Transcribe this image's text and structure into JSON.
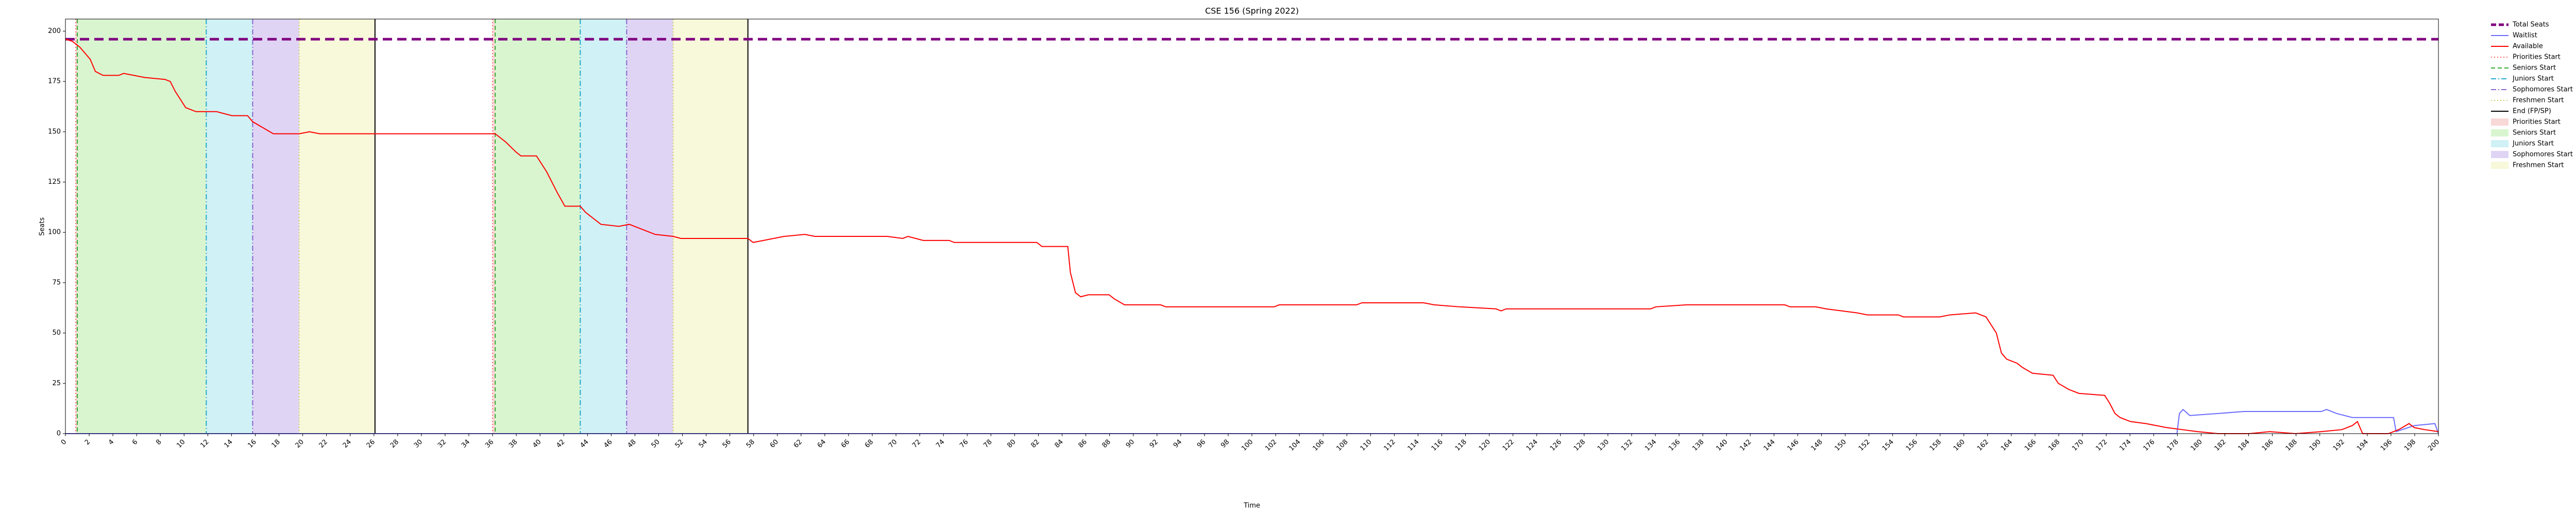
{
  "chart_data": {
    "type": "line",
    "title": "CSE 156 (Spring 2022)",
    "x_label": "Time",
    "y_label": "Seats",
    "xlim": [
      0,
      200
    ],
    "ylim": [
      0,
      206
    ],
    "xticks": [
      0,
      2,
      4,
      6,
      8,
      10,
      12,
      14,
      16,
      18,
      20,
      22,
      24,
      26,
      28,
      30,
      32,
      34,
      36,
      38,
      40,
      42,
      44,
      46,
      48,
      50,
      52,
      54,
      56,
      58,
      60,
      62,
      64,
      66,
      68,
      70,
      72,
      74,
      76,
      78,
      80,
      82,
      84,
      86,
      88,
      90,
      92,
      94,
      96,
      98,
      100,
      102,
      104,
      106,
      108,
      110,
      112,
      114,
      116,
      118,
      120,
      122,
      124,
      126,
      128,
      130,
      132,
      134,
      136,
      138,
      140,
      142,
      144,
      146,
      148,
      150,
      152,
      154,
      156,
      158,
      160,
      162,
      164,
      166,
      168,
      170,
      172,
      174,
      176,
      178,
      180,
      182,
      184,
      186,
      188,
      190,
      192,
      194,
      196,
      198,
      200
    ],
    "yticks": [
      0,
      25,
      50,
      75,
      100,
      125,
      150,
      175,
      200
    ],
    "grid": true,
    "total_seats": {
      "name": "Total Seats",
      "color": "#800080",
      "value": 196
    },
    "series": [
      {
        "name": "Waitlist",
        "color": "#6b6bff",
        "x": [
          0,
          177.96,
          178.17,
          178.48,
          179.04,
          181.43,
          183.61,
          190.13,
          190.57,
          191.43,
          192.74,
          196.22,
          196.43,
          197.96,
          199.7,
          200
        ],
        "values": [
          0,
          0,
          10,
          12,
          9,
          10,
          11,
          11,
          12,
          10,
          8,
          8,
          1,
          4,
          5,
          0
        ]
      },
      {
        "name": "Available",
        "color": "#ff0000",
        "x": [
          0,
          0.57,
          1.22,
          2.09,
          2.52,
          3.17,
          4.48,
          4.91,
          5.78,
          6.65,
          8.39,
          8.83,
          9.26,
          9.7,
          10.13,
          11,
          12.74,
          14.04,
          15.35,
          15.78,
          16.65,
          17.52,
          19.7,
          20.57,
          21.43,
          36.22,
          37.09,
          37.96,
          38.39,
          39.7,
          40.57,
          41.43,
          42.09,
          43.39,
          43.83,
          44.48,
          45.13,
          46.65,
          47.52,
          48.83,
          49.7,
          51.22,
          51.87,
          57.52,
          57.96,
          58.83,
          60.57,
          62.3,
          63.17,
          69.26,
          70.57,
          71,
          72.3,
          74.48,
          74.91,
          81.87,
          82.3,
          84.48,
          84.7,
          85.13,
          85.57,
          86.22,
          87.96,
          88.39,
          89.26,
          92.3,
          92.74,
          101.87,
          102.3,
          108.83,
          109.26,
          114.48,
          115.35,
          117.52,
          120.57,
          121,
          121.43,
          133.61,
          134.04,
          136.65,
          144.91,
          145.35,
          147.52,
          148.39,
          149.7,
          151,
          151.87,
          154.48,
          154.91,
          157.96,
          158.83,
          161,
          161.43,
          161.87,
          162.74,
          163.17,
          163.61,
          164.48,
          164.91,
          165.78,
          167.52,
          167.96,
          168.83,
          169.26,
          169.7,
          171.87,
          172.3,
          172.74,
          173.17,
          174.04,
          175.35,
          176.22,
          177.09,
          178.39,
          179.7,
          181.43,
          184.04,
          185.78,
          187.96,
          190.13,
          191.87,
          192.74,
          193.17,
          193.61,
          195.78,
          196.65,
          197.52,
          197.96,
          198.83,
          200
        ],
        "values": [
          196,
          195,
          192,
          186,
          180,
          178,
          178,
          179,
          178,
          177,
          176,
          175,
          170,
          166,
          162,
          160,
          160,
          158,
          158,
          155,
          152,
          149,
          149,
          150,
          149,
          149,
          145,
          140,
          138,
          138,
          130,
          120,
          113,
          113,
          110,
          107,
          104,
          103,
          104,
          101,
          99,
          98,
          97,
          97,
          95,
          96,
          98,
          99,
          98,
          98,
          97,
          98,
          96,
          96,
          95,
          95,
          93,
          93,
          80,
          70,
          68,
          69,
          69,
          67,
          64,
          64,
          63,
          63,
          64,
          64,
          65,
          65,
          64,
          63,
          62,
          61,
          62,
          62,
          63,
          64,
          64,
          63,
          63,
          62,
          61,
          60,
          59,
          59,
          58,
          58,
          59,
          60,
          59,
          58,
          50,
          40,
          37,
          35,
          33,
          30,
          29,
          25,
          22,
          21,
          20,
          19,
          15,
          10,
          8,
          6,
          5,
          4,
          3,
          2,
          1,
          0,
          0,
          1,
          0,
          1,
          2,
          4,
          6,
          0,
          0,
          2,
          5,
          3,
          2,
          1
        ]
      }
    ],
    "markers": [
      {
        "name": "Priorities Start",
        "color": "#ff6666",
        "dash": "2,4",
        "x": [
          0.87,
          36
        ]
      },
      {
        "name": "Seniors Start",
        "color": "#33aa33",
        "dash": "8,5",
        "x": [
          1,
          36.22
        ]
      },
      {
        "name": "Juniors Start",
        "color": "#22aacc",
        "dash": "10,4,2,4",
        "x": [
          11.87,
          43.39
        ]
      },
      {
        "name": "Sophomores Start",
        "color": "#8866cc",
        "dash": "10,4,2,4",
        "x": [
          15.78,
          47.3
        ]
      },
      {
        "name": "Freshmen Start",
        "color": "#cccc66",
        "dash": "2,4",
        "x": [
          19.7,
          51.22
        ]
      },
      {
        "name": "End (FP/SP)",
        "color": "#000000",
        "dash": "none",
        "x": [
          26.09,
          57.52
        ]
      }
    ],
    "spans": [
      {
        "name": "Priorities Start",
        "color": "#f9d8d8"
      },
      {
        "name": "Seniors Start",
        "color": "#d9f5d0"
      },
      {
        "name": "Juniors Start",
        "color": "#d0f1f5"
      },
      {
        "name": "Sophomores Start",
        "color": "#e0d4f5"
      },
      {
        "name": "Freshmen Start",
        "color": "#f8f8da"
      }
    ]
  }
}
